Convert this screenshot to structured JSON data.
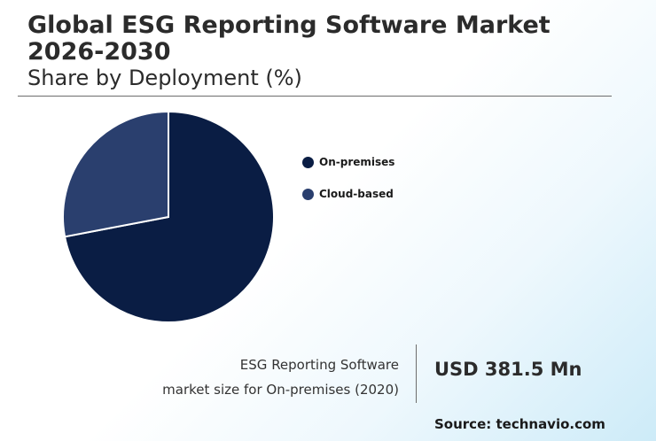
{
  "header": {
    "title": "Global ESG Reporting Software Market 2026-2030",
    "subtitle": "Share by Deployment (%)"
  },
  "chart_data": {
    "type": "pie",
    "slices": [
      {
        "name": "On-premises",
        "value": 72,
        "color": "#0a1d44"
      },
      {
        "name": "Cloud-based",
        "value": 28,
        "color": "#2a3f6e"
      }
    ],
    "legend_placement": "right"
  },
  "stat": {
    "label_line1": "ESG Reporting Software",
    "label_line2": "market size for On-premises (2020)",
    "value": "USD 381.5 Mn"
  },
  "source": "Source: technavio.com"
}
